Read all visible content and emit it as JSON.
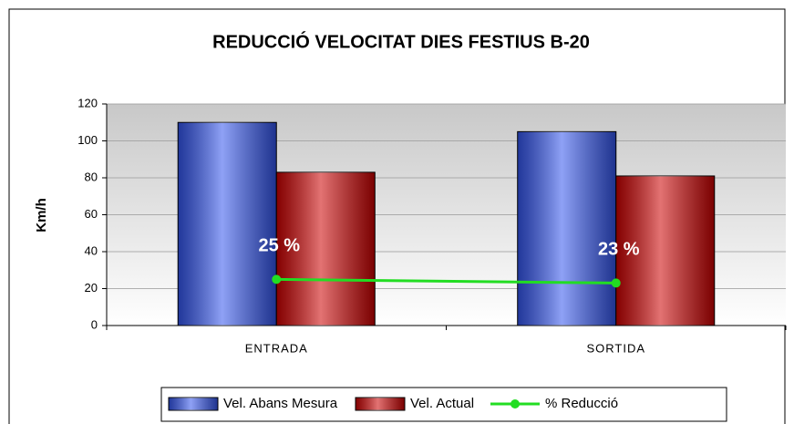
{
  "chart_data": {
    "type": "bar",
    "title": "REDUCCIÓ VELOCITAT DIES FESTIUS B-20",
    "y_label": "Km/h",
    "categories": [
      "ENTRADA",
      "SORTIDA"
    ],
    "series": [
      {
        "name": "Vel. Abans Mesura",
        "color": "#3355ee",
        "values": [
          110,
          105
        ]
      },
      {
        "name": "Vel. Actual",
        "color": "#cc0000",
        "values": [
          83,
          81
        ]
      },
      {
        "name": "% Reducció",
        "color": "#22dd22",
        "type": "line",
        "values": [
          25,
          23
        ],
        "value_labels": [
          "25 %",
          "23 %"
        ]
      }
    ],
    "ylim": [
      0,
      120
    ],
    "yticks": [
      0,
      20,
      40,
      60,
      80,
      100,
      120
    ],
    "grid": true,
    "legend": "bottom"
  }
}
